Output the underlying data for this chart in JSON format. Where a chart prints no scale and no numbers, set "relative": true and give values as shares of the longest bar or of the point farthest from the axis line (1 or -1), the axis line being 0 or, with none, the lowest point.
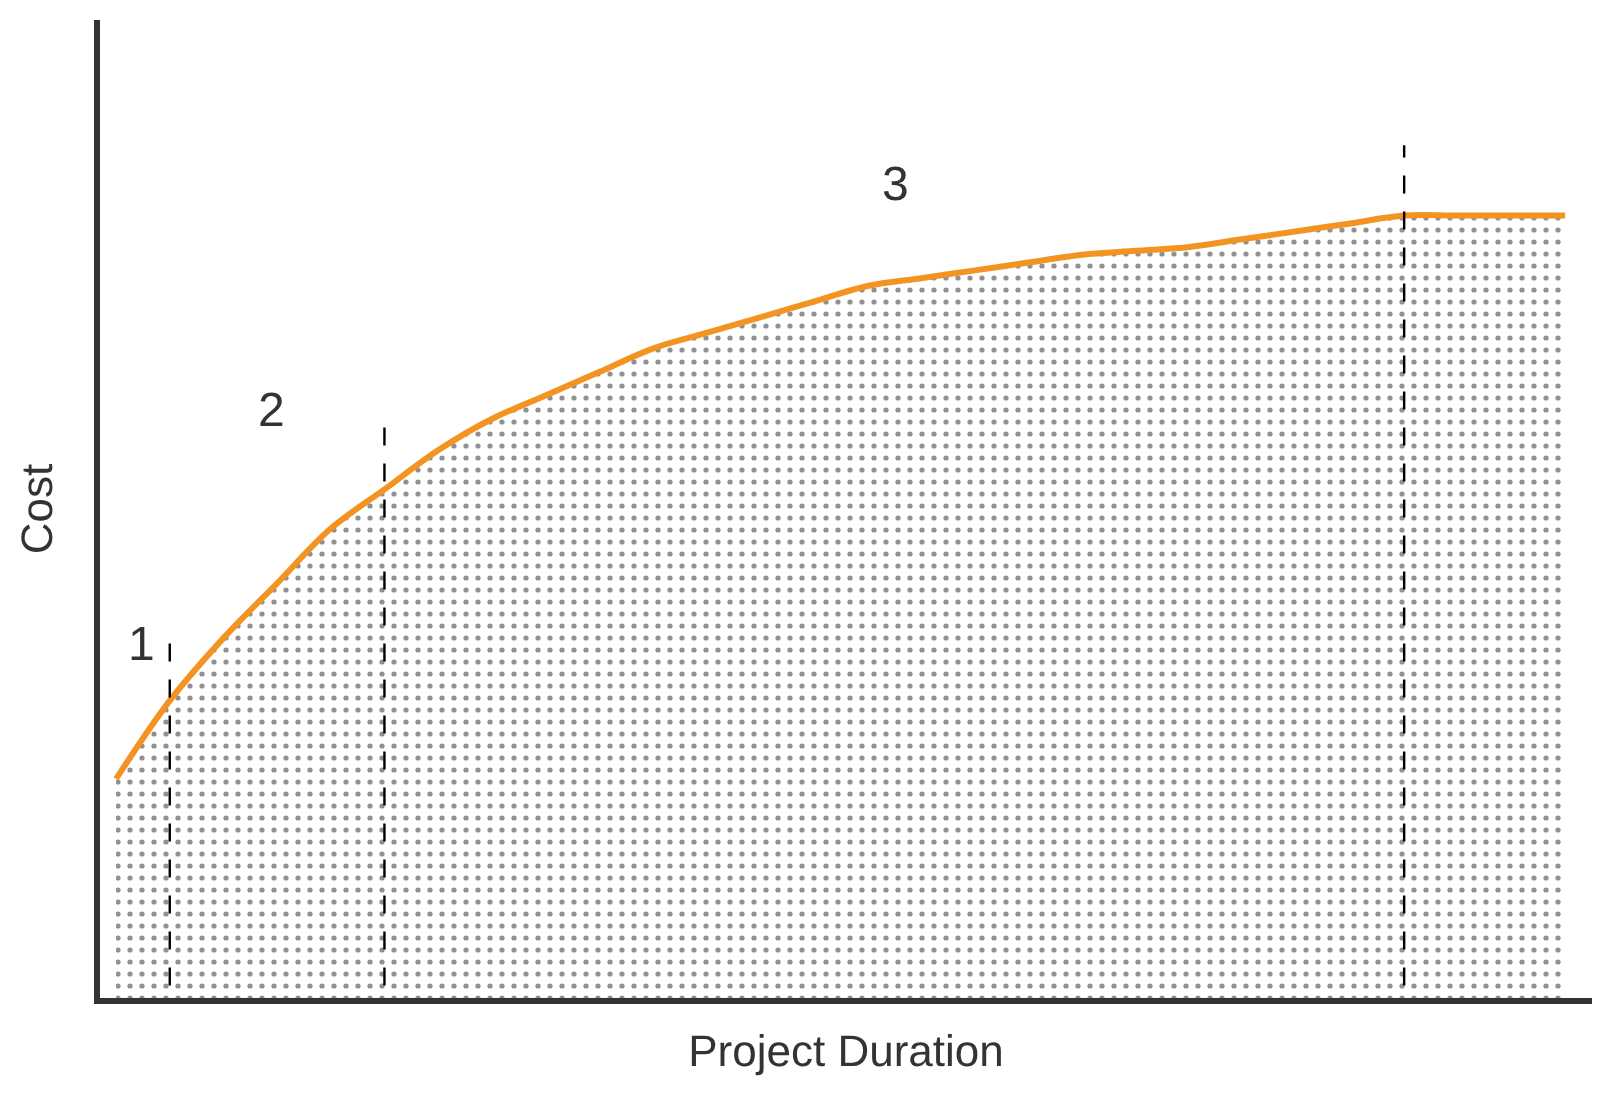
{
  "chart_data": {
    "type": "area",
    "relative": true,
    "xlabel": "Project Duration",
    "ylabel": "Cost",
    "categories": [
      null,
      null,
      null,
      null,
      null,
      null,
      null,
      null,
      null,
      null,
      null,
      null,
      null,
      null,
      null,
      null,
      null,
      null,
      null,
      null,
      null,
      null,
      null,
      null,
      null,
      null,
      null,
      null
    ],
    "series": [
      {
        "color": "#f39422",
        "values": [
          0.28,
          0.38,
          0.46,
          0.53,
          0.6,
          0.65,
          0.7,
          0.74,
          0.77,
          0.8,
          0.83,
          0.85,
          0.87,
          0.89,
          0.91,
          0.92,
          0.93,
          0.94,
          0.95,
          0.955,
          0.96,
          0.97,
          0.98,
          0.99,
          1,
          1,
          1,
          1
        ]
      }
    ],
    "annotations": [
      "1",
      "2",
      "3"
    ]
  }
}
